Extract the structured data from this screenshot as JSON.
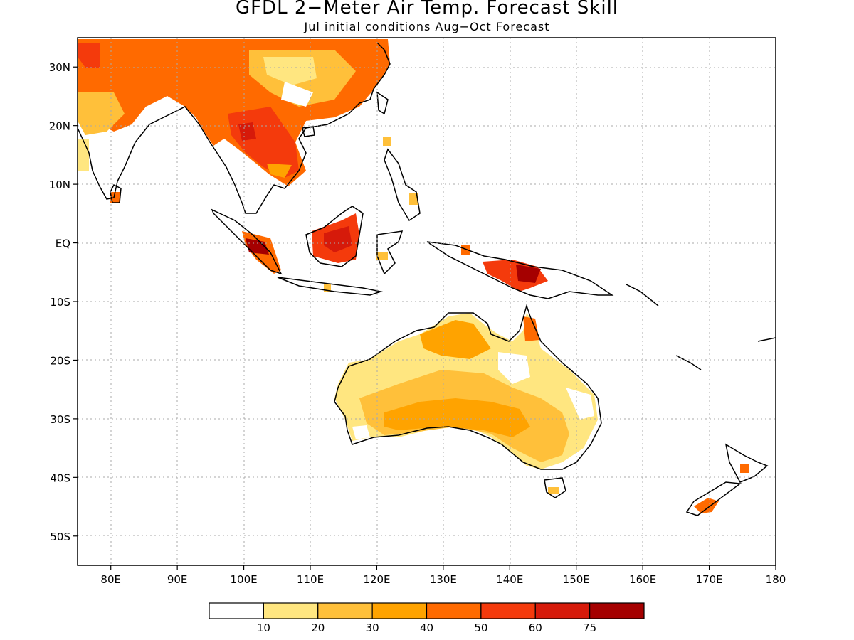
{
  "title": "GFDL 2−Meter Air Temp. Forecast Skill",
  "subtitle": "Jul initial conditions  Aug−Oct Forecast",
  "map": {
    "lon_range": [
      75,
      180
    ],
    "lat_range": [
      -55,
      35
    ],
    "lon_ticks": [
      "80E",
      "90E",
      "100E",
      "110E",
      "120E",
      "130E",
      "140E",
      "150E",
      "160E",
      "170E",
      "180"
    ],
    "lat_ticks": [
      "30N",
      "20N",
      "10N",
      "EQ",
      "10S",
      "20S",
      "30S",
      "40S",
      "50S"
    ],
    "grid": "dotted"
  },
  "colorbar": {
    "labels": [
      "10",
      "20",
      "30",
      "40",
      "50",
      "60",
      "75"
    ],
    "colors": [
      "#ffffff",
      "#ffe680",
      "#ffc03a",
      "#ffa300",
      "#ff6a00",
      "#f43a0c",
      "#d61a0a",
      "#a50000"
    ]
  }
}
